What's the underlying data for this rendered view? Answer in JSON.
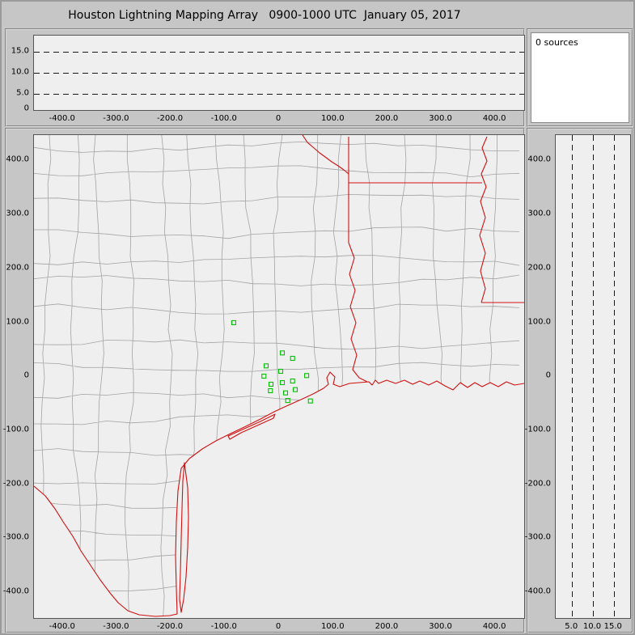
{
  "window": {
    "title": "Houston Lightning Mapping Array   0900-1000 UTC  January 05, 2017"
  },
  "colors": {
    "state_border": "#d01010",
    "county_border": "#a3a3a3",
    "station": "#00c000",
    "gridline": "#181818",
    "plot_background": "#efefef",
    "window_background": "#c6c6c6",
    "sources_background": "#ffffff"
  },
  "panels": {
    "sources": {
      "label": "0 sources"
    },
    "alt_ew": {
      "y_tick_labels": [
        "15.0",
        "10.0",
        "5.0",
        "0"
      ],
      "x_tick_labels": [
        "-400.0",
        "-300.0",
        "-200.0",
        "-100.0",
        "0",
        "100.0",
        "200.0",
        "300.0",
        "400.0"
      ],
      "gridlines_km": [
        15,
        10,
        5
      ]
    },
    "map": {
      "y_tick_labels": [
        "400.0",
        "300.0",
        "200.0",
        "100.0",
        "0",
        "-100.0",
        "-200.0",
        "-300.0",
        "-400.0"
      ],
      "x_tick_labels": [
        "-400.0",
        "-300.0",
        "-200.0",
        "-100.0",
        "0",
        "100.0",
        "200.0",
        "300.0",
        "400.0"
      ]
    },
    "alt_ns": {
      "y_tick_labels": [
        "400.0",
        "300.0",
        "200.0",
        "100.0",
        "0",
        "-100.0",
        "-200.0",
        "-300.0",
        "-400.0"
      ],
      "x_tick_labels": [
        "5.0",
        "10.0",
        "15.0"
      ],
      "gridlines_km": [
        5,
        10,
        15
      ]
    }
  },
  "chart_data": {
    "type": "scatter",
    "title": "Houston Lightning Mapping Array 0900-1000 UTC January 05, 2017",
    "sources_plotted": 0,
    "panels": [
      {
        "id": "altitude-vs-east-west",
        "type": "scatter",
        "xlim_km": [
          -440,
          440
        ],
        "alt_lim_km": [
          0,
          19
        ],
        "gridlines_alt_km": [
          5,
          10,
          15
        ],
        "points": []
      },
      {
        "id": "plan-view-map",
        "type": "scatter",
        "xlim_km": [
          -440,
          440
        ],
        "ylim_km": [
          -440,
          440
        ],
        "points": [],
        "station_markers_km": [
          [
            -84,
            99
          ],
          [
            6,
            43
          ],
          [
            25,
            33
          ],
          [
            -24,
            19
          ],
          [
            -28,
            0
          ],
          [
            3,
            9
          ],
          [
            51,
            1
          ],
          [
            -15,
            -15
          ],
          [
            6,
            -12
          ],
          [
            25,
            -9
          ],
          [
            -16,
            -27
          ],
          [
            12,
            -31
          ],
          [
            30,
            -25
          ],
          [
            16,
            -45
          ],
          [
            58,
            -46
          ]
        ]
      },
      {
        "id": "altitude-vs-north-south",
        "type": "scatter",
        "alt_lim_km": [
          0,
          19
        ],
        "ylim_km": [
          -440,
          440
        ],
        "gridlines_alt_km": [
          5,
          10,
          15
        ],
        "points": []
      }
    ],
    "legend": "none",
    "grid": "dashed altitude reference lines at 5, 10, 15 km"
  }
}
